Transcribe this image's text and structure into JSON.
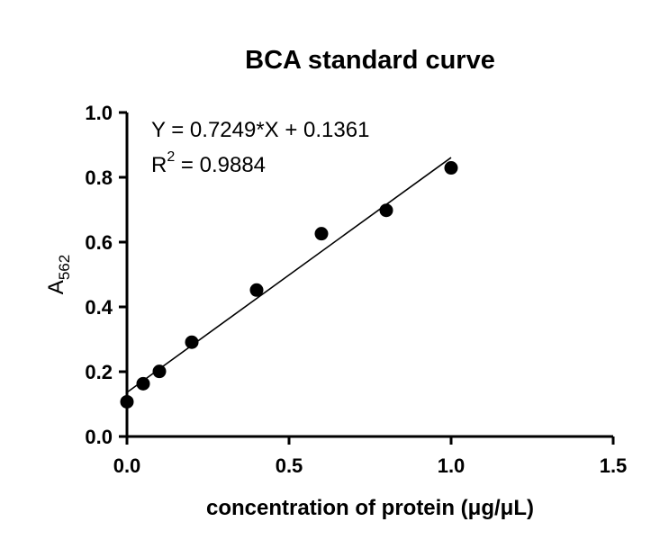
{
  "chart_data": {
    "type": "scatter",
    "title": "BCA standard curve",
    "xlabel": "concentration of protein (μg/μL)",
    "ylabel_main": "A",
    "ylabel_sub": "562",
    "xlim": [
      0,
      1.5
    ],
    "ylim": [
      0,
      1.0
    ],
    "xticks": [
      0.0,
      0.5,
      1.0,
      1.5
    ],
    "xtick_labels": [
      "0.0",
      "0.5",
      "1.0",
      "1.5"
    ],
    "yticks": [
      0.0,
      0.2,
      0.4,
      0.6,
      0.8,
      1.0
    ],
    "ytick_labels": [
      "0.0",
      "0.2",
      "0.4",
      "0.6",
      "0.8",
      "1.0"
    ],
    "grid": false,
    "series": [
      {
        "x": [
          0,
          0.05,
          0.1,
          0.2,
          0.4,
          0.6,
          0.8,
          1.0
        ],
        "y": [
          0.107,
          0.163,
          0.201,
          0.291,
          0.452,
          0.626,
          0.698,
          0.829
        ]
      }
    ],
    "fit": {
      "slope": 0.7249,
      "intercept": 0.1361,
      "x_range": [
        0,
        1.0
      ]
    },
    "equation": "Y = 0.7249*X + 0.1361",
    "r2_prefix": "R",
    "r2_sup": "2",
    "r2_suffix": " = 0.9884"
  }
}
